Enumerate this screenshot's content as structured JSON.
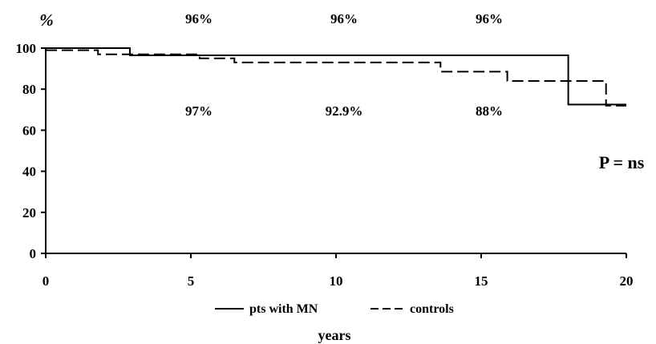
{
  "chart_data": {
    "type": "line",
    "title": "",
    "xlabel": "years",
    "ylabel": "%",
    "xlim": [
      0,
      20
    ],
    "ylim": [
      0,
      100
    ],
    "x_ticks": [
      0,
      5,
      10,
      15,
      20
    ],
    "y_ticks": [
      0,
      20,
      40,
      60,
      80,
      100
    ],
    "grid": false,
    "legend_position": "bottom",
    "series": [
      {
        "name": "pts with MN",
        "style": "solid",
        "color": "#000000",
        "points": [
          [
            0,
            100
          ],
          [
            2.9,
            100
          ],
          [
            2.9,
            96.5
          ],
          [
            18,
            96.5
          ],
          [
            18,
            72.5
          ],
          [
            20,
            72.5
          ]
        ]
      },
      {
        "name": "controls",
        "style": "dashed",
        "color": "#000000",
        "points": [
          [
            0,
            99
          ],
          [
            1.8,
            99
          ],
          [
            1.8,
            97
          ],
          [
            5.3,
            97
          ],
          [
            5.3,
            95
          ],
          [
            6.5,
            95
          ],
          [
            6.5,
            93
          ],
          [
            13.6,
            93
          ],
          [
            13.6,
            88.5
          ],
          [
            15.9,
            88.5
          ],
          [
            15.9,
            84
          ],
          [
            19.3,
            84
          ],
          [
            19.3,
            72
          ],
          [
            20,
            72
          ]
        ]
      }
    ],
    "annotations_top": [
      {
        "x": 5,
        "text": "96%"
      },
      {
        "x": 10,
        "text": "96%"
      },
      {
        "x": 15,
        "text": "96%"
      }
    ],
    "annotations_mid": [
      {
        "x": 5,
        "text": "97%"
      },
      {
        "x": 10,
        "text": "92.9%"
      },
      {
        "x": 15,
        "text": "88%"
      }
    ],
    "p_value_text": "P = ns"
  }
}
